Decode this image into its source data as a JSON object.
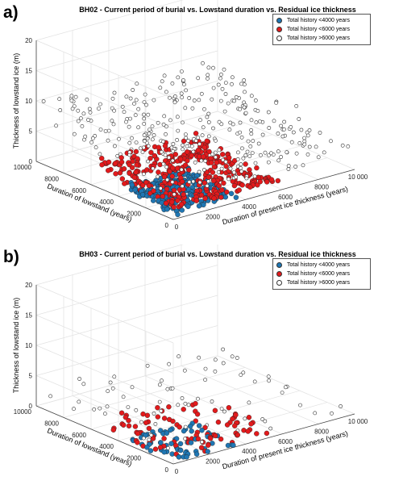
{
  "chart_data": [
    {
      "type": "scatter",
      "panel": "a)",
      "title": "BH02 - Current period of burial vs. Lowstand duration vs. Residual ice thickness",
      "xlabel": "Duration of present ice thickness (years)",
      "ylabel": "Duration of lowstand (years)",
      "zlabel": "Thickness of lowstand ice (m)",
      "xlim": [
        0,
        10000
      ],
      "ylim": [
        0,
        10000
      ],
      "zlim": [
        0,
        20
      ],
      "x_ticks": [
        "0",
        "2000",
        "4000",
        "6000",
        "8000",
        "10 000"
      ],
      "y_ticks": [
        "0",
        "2000",
        "4000",
        "6000",
        "8000",
        "10000"
      ],
      "z_ticks": [
        "0",
        "5",
        "10",
        "15",
        "20"
      ],
      "grid": true,
      "legend_position": "top-right",
      "series": [
        {
          "name": "Total history <4000 years",
          "color": "#1f77b4",
          "fill": "#1f77b4",
          "n": 230,
          "x_range": [
            0,
            3600
          ],
          "y_range": [
            0,
            3600
          ],
          "z_range": [
            0,
            3
          ],
          "seed": 11
        },
        {
          "name": "Total history <6000 years",
          "color": "#e31a1c",
          "fill": "#e31a1c",
          "n": 330,
          "x_range": [
            0,
            5800
          ],
          "y_range": [
            0,
            5800
          ],
          "z_range": [
            0,
            6
          ],
          "seed": 23
        },
        {
          "name": "Total history >6000 years",
          "color": "#333333",
          "fill": "#ffffff",
          "n": 330,
          "x_range": [
            0,
            10000
          ],
          "y_range": [
            0,
            10000
          ],
          "z_range": [
            0,
            13
          ],
          "seed": 37
        }
      ]
    },
    {
      "type": "scatter",
      "panel": "b)",
      "title": "BH03 - Current period of burial vs. Lowstand duration vs. Residual ice thickness",
      "xlabel": "Duration of present ice thickness (years)",
      "ylabel": "Duration of lowstand (years)",
      "zlabel": "Thickness of lowstand ice (m)",
      "xlim": [
        0,
        10000
      ],
      "ylim": [
        0,
        10000
      ],
      "zlim": [
        0,
        20
      ],
      "x_ticks": [
        "0",
        "2000",
        "4000",
        "6000",
        "8000",
        "10 000"
      ],
      "y_ticks": [
        "0",
        "2000",
        "4000",
        "6000",
        "8000",
        "10000"
      ],
      "z_ticks": [
        "0",
        "5",
        "10",
        "15",
        "20"
      ],
      "grid": true,
      "legend_position": "top-right",
      "series": [
        {
          "name": "Total history <4000 years",
          "color": "#1f77b4",
          "fill": "#1f77b4",
          "n": 65,
          "x_range": [
            0,
            3600
          ],
          "y_range": [
            0,
            3600
          ],
          "z_range": [
            0,
            1.2
          ],
          "seed": 51
        },
        {
          "name": "Total history <6000 years",
          "color": "#e31a1c",
          "fill": "#e31a1c",
          "n": 90,
          "x_range": [
            0,
            5800
          ],
          "y_range": [
            0,
            5800
          ],
          "z_range": [
            0,
            2
          ],
          "seed": 63
        },
        {
          "name": "Total history >6000 years",
          "color": "#333333",
          "fill": "#ffffff",
          "n": 75,
          "x_range": [
            0,
            10000
          ],
          "y_range": [
            0,
            10000
          ],
          "z_range": [
            0,
            3.5
          ],
          "seed": 77
        }
      ]
    }
  ]
}
